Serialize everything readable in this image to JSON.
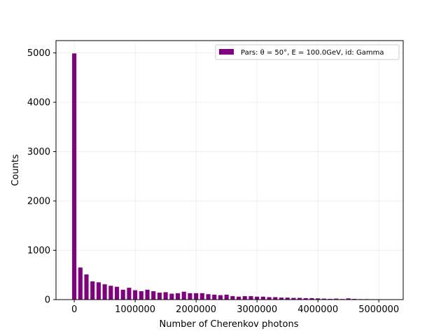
{
  "chart_data": {
    "type": "bar",
    "xlabel": "Number of Cherenkov photons",
    "ylabel": "Counts",
    "legend": {
      "label": "Pars: θ = 50°, E = 100.0GeV, id: Gamma",
      "placement": "top-right"
    },
    "color": "#800080",
    "bin_width": 70000,
    "x": [
      0,
      100000,
      200000,
      300000,
      400000,
      500000,
      600000,
      700000,
      800000,
      900000,
      1000000,
      1100000,
      1200000,
      1300000,
      1400000,
      1500000,
      1600000,
      1700000,
      1800000,
      1900000,
      2000000,
      2100000,
      2200000,
      2300000,
      2400000,
      2500000,
      2600000,
      2700000,
      2800000,
      2900000,
      3000000,
      3100000,
      3200000,
      3300000,
      3400000,
      3500000,
      3600000,
      3700000,
      3800000,
      3900000,
      4000000,
      4100000,
      4200000,
      4300000,
      4400000,
      4500000,
      4600000,
      4700000,
      4800000,
      4900000,
      5000000,
      5100000
    ],
    "values": [
      4990,
      650,
      510,
      370,
      350,
      310,
      280,
      260,
      200,
      240,
      190,
      170,
      200,
      170,
      140,
      150,
      120,
      130,
      160,
      130,
      130,
      130,
      110,
      100,
      90,
      100,
      70,
      60,
      70,
      70,
      60,
      60,
      50,
      50,
      40,
      40,
      35,
      35,
      30,
      30,
      25,
      20,
      15,
      20,
      12,
      25,
      15,
      10,
      10,
      8,
      8,
      5
    ],
    "xlim": [
      -300000,
      5400000
    ],
    "ylim": [
      0,
      5250
    ],
    "xticks": [
      0,
      1000000,
      2000000,
      3000000,
      4000000,
      5000000
    ],
    "xtick_labels": [
      "0",
      "1000000",
      "2000000",
      "3000000",
      "4000000",
      "5000000"
    ],
    "yticks": [
      0,
      1000,
      2000,
      3000,
      4000,
      5000
    ],
    "ytick_labels": [
      "0",
      "1000",
      "2000",
      "3000",
      "4000",
      "5000"
    ],
    "grid": true
  }
}
